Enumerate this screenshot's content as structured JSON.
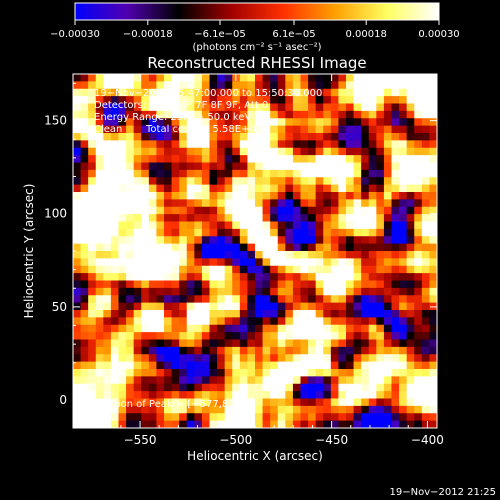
{
  "chart_data": {
    "type": "heatmap",
    "title": "Reconstructed RHESSI Image",
    "xlabel": "Heliocentric X (arcsec)",
    "ylabel": "Heliocentric Y (arcsec)",
    "xlim": [
      -585,
      -395
    ],
    "ylim": [
      -15,
      175
    ],
    "xticks": [
      -550,
      -500,
      -450,
      -400
    ],
    "xtick_labels": [
      "−550",
      "−500",
      "−450",
      "−400"
    ],
    "yticks": [
      0,
      50,
      100,
      150
    ],
    "ytick_labels": [
      "0",
      "50",
      "100",
      "150"
    ],
    "colorbar": {
      "range": [
        -0.0003,
        0.0003
      ],
      "ticks": [
        -0.0003,
        -0.00018,
        -6.1e-05,
        6.1e-05,
        0.00018,
        0.0003
      ],
      "tick_labels": [
        "−0.00030",
        "−0.00018",
        "−6.1e−05",
        "6.1e−05",
        "0.00018",
        "0.00030"
      ],
      "units": "(photons cm⁻² s⁻¹ asec⁻²)",
      "colormap": [
        "#0000ff",
        "#5000b0",
        "#000000",
        "#a00000",
        "#ff3000",
        "#ffa000",
        "#ffff60",
        "#ffffff"
      ]
    },
    "annotations": [
      "19−Nov−2012 15:47:00.000 to 15:50:30.000",
      "Detectors: 3F 5F 6F 7F 8F 9F, Att 0",
      "Energy Range: 25.0 − 50.0 keV",
      "Clean",
      "Total counts: 5.58E+03"
    ],
    "peak_label": "Position of Peak = [−577,89]",
    "grid": false,
    "grid_size": [
      48,
      48
    ],
    "seed": 1711
  },
  "footer": {
    "timestamp": "19−Nov−2012 21:25"
  }
}
